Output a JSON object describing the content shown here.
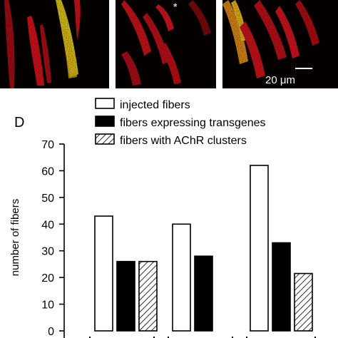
{
  "micrographs": {
    "scale_bar_label": "20 μm"
  },
  "chart_data": {
    "type": "bar",
    "panel_label": "D",
    "ylabel": "number of fibers",
    "ylim": [
      0,
      70
    ],
    "yticks": [
      0,
      10,
      20,
      30,
      40,
      50,
      60,
      70
    ],
    "legend_position": "top",
    "groups": 3,
    "series": [
      {
        "name": "injected fibers",
        "fill": "white",
        "values": [
          43,
          40,
          62
        ]
      },
      {
        "name": "fibers expressing transgenes",
        "fill": "black",
        "values": [
          26,
          28,
          33
        ]
      },
      {
        "name": "fibers with AChR clusters",
        "fill": "hatched",
        "values": [
          26,
          null,
          21.5
        ]
      }
    ],
    "grid": false
  },
  "colors": {
    "background": "#ffffff",
    "micrograph_background": "#060000",
    "fiber_red": "#d8141c",
    "fiber_yellow": "#e8d21a",
    "bar_outline": "#000000",
    "bar_solid": "#000000"
  }
}
